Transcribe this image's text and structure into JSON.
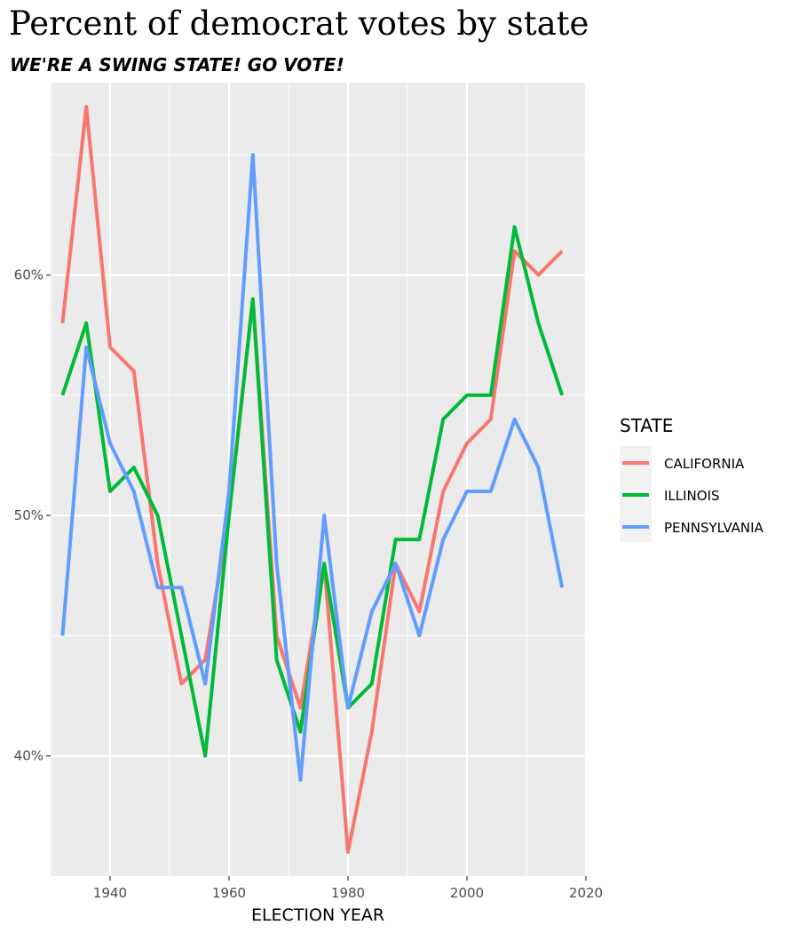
{
  "chart_data": {
    "type": "line",
    "title": "Percent of democrat votes by state",
    "subtitle": "WE'RE A SWING STATE! GO VOTE!",
    "xlabel": "ELECTION YEAR",
    "ylabel": "",
    "xlim": [
      1930,
      2020
    ],
    "ylim": [
      35,
      68
    ],
    "x_ticks": [
      1940,
      1960,
      1980,
      2000,
      2020
    ],
    "x_tick_labels": [
      "1940",
      "1960",
      "1980",
      "2000",
      "2020"
    ],
    "y_ticks": [
      40,
      50,
      60
    ],
    "y_tick_labels": [
      "40%",
      "50%",
      "60%"
    ],
    "x_grid_major": [
      1940,
      1960,
      1980,
      2000,
      2020
    ],
    "x_grid_minor": [
      1930,
      1950,
      1970,
      1990,
      2010
    ],
    "y_grid_minor": [
      45,
      55,
      65
    ],
    "grid": true,
    "panel_background": "#ebebeb",
    "legend_title": "STATE",
    "legend_position": "right",
    "x": [
      1932,
      1936,
      1940,
      1944,
      1948,
      1952,
      1956,
      1960,
      1964,
      1968,
      1972,
      1976,
      1980,
      1984,
      1988,
      1992,
      1996,
      2000,
      2004,
      2008,
      2012,
      2016
    ],
    "series": [
      {
        "name": "CALIFORNIA",
        "color": "#f8766d",
        "values": [
          58,
          67,
          57,
          56,
          48,
          43,
          44,
          50,
          59,
          45,
          42,
          48,
          36,
          41,
          48,
          46,
          51,
          53,
          54,
          61,
          60,
          61
        ]
      },
      {
        "name": "ILLINOIS",
        "color": "#00ba38",
        "values": [
          55,
          58,
          51,
          52,
          50,
          45,
          40,
          50,
          59,
          44,
          41,
          48,
          42,
          43,
          49,
          49,
          54,
          55,
          55,
          62,
          58,
          55
        ]
      },
      {
        "name": "PENNSYLVANIA",
        "color": "#619cff",
        "values": [
          45,
          57,
          53,
          51,
          47,
          47,
          43,
          51,
          65,
          48,
          39,
          50,
          42,
          46,
          48,
          45,
          49,
          51,
          51,
          54,
          52,
          47
        ]
      }
    ]
  }
}
